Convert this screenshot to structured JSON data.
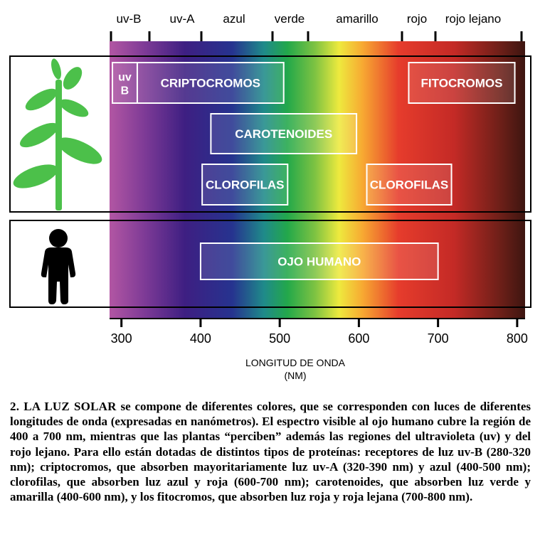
{
  "top_bands": [
    "uv-B",
    "uv-A",
    "azul",
    "verde",
    "amarillo",
    "rojo",
    "rojo lejano"
  ],
  "axis": {
    "min": 285,
    "max": 810,
    "ticks": [
      300,
      400,
      500,
      600,
      700,
      800
    ],
    "label_line1": "LONGITUD DE ONDA",
    "label_line2": "(NM)"
  },
  "spectrum_colors": [
    {
      "nm": 285,
      "color": "#b256a3"
    },
    {
      "nm": 330,
      "color": "#7d3a96"
    },
    {
      "nm": 380,
      "color": "#3e1f82"
    },
    {
      "nm": 440,
      "color": "#26338f"
    },
    {
      "nm": 480,
      "color": "#1f8a8a"
    },
    {
      "nm": 510,
      "color": "#23a84a"
    },
    {
      "nm": 545,
      "color": "#7fc342"
    },
    {
      "nm": 575,
      "color": "#eeea3e"
    },
    {
      "nm": 605,
      "color": "#f7a832"
    },
    {
      "nm": 650,
      "color": "#e63c2c"
    },
    {
      "nm": 720,
      "color": "#c42a26"
    },
    {
      "nm": 780,
      "color": "#6b1f18"
    },
    {
      "nm": 810,
      "color": "#3d1510"
    }
  ],
  "receptor_boxes": [
    {
      "label_line1": "uv",
      "label_line2": "B",
      "start_nm": 280,
      "end_nm": 320,
      "row": 1
    },
    {
      "label_line1": "CRIPTOCROMOS",
      "start_nm": 320,
      "end_nm": 505,
      "row": 1
    },
    {
      "label_line1": "FITOCROMOS",
      "start_nm": 663,
      "end_nm": 797,
      "row": 1
    },
    {
      "label_line1": "CAROTENOIDES",
      "start_nm": 413,
      "end_nm": 597,
      "row": 2
    },
    {
      "label_line1": "CLOROFILAS",
      "start_nm": 402,
      "end_nm": 510,
      "row": 3
    },
    {
      "label_line1": "CLOROFILAS",
      "start_nm": 610,
      "end_nm": 717,
      "row": 3
    },
    {
      "label_line1": "OJO HUMANO",
      "start_nm": 400,
      "end_nm": 700,
      "row": 4
    }
  ],
  "caption": {
    "lead": "2. LA LUZ SOLAR",
    "text": " se compone de diferentes colores, que se corresponden con luces de diferentes longitudes de onda (expresadas en nanómetros). El espectro visible al ojo humano cubre la región de 400 a 700 nm, mientras que las plantas “perciben” además las regiones del ultravioleta (uv) y del rojo lejano. Para ello están dotadas de distintos tipos de proteínas: receptores de luz uv-B (280-320 nm); criptocromos, que absorben mayoritariamente luz uv-A (320-390 nm) y azul (400-500 nm); clorofilas, que absorben luz azul y roja (600-700 nm); carotenoides, que absorben luz verde y amarilla (400-600 nm), y los fitocromos, que absorben luz roja y roja lejana (700-800 nm)."
  },
  "colors": {
    "plant": "#4cc04a",
    "person": "#000000",
    "box_outline": "#ffffff",
    "frame": "#000000"
  },
  "icons": {
    "plant": "plant-icon",
    "person": "person-icon"
  }
}
